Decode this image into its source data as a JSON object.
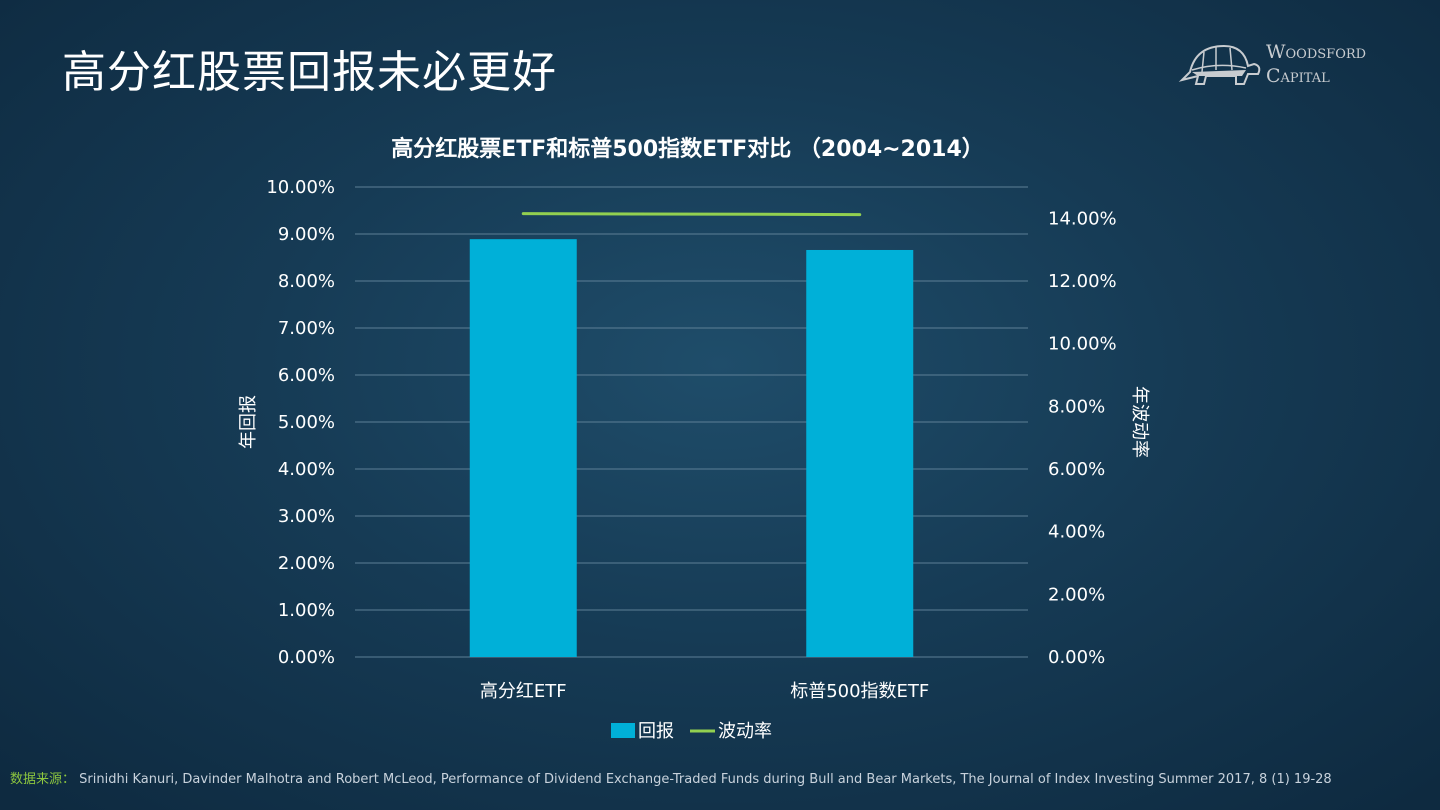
{
  "slide_title": "高分红股票回报未必更好",
  "logo": {
    "line1": "Woodsford",
    "line2": "Capital"
  },
  "chart_data": {
    "type": "bar+line",
    "title": "高分红股票ETF和标普500指数ETF对比 （2004~2014）",
    "categories": [
      "高分红ETF",
      "标普500指数ETF"
    ],
    "series": [
      {
        "name": "回报",
        "type": "bar",
        "axis": "left",
        "values": [
          0.0889,
          0.0866
        ],
        "color": "#00b0d8"
      },
      {
        "name": "波动率",
        "type": "line",
        "axis": "right",
        "values": [
          0.1415,
          0.1412
        ],
        "color": "#92d050"
      }
    ],
    "ylabel": "年回报",
    "y2label": "年波动率",
    "ylim": [
      0,
      0.1
    ],
    "y2lim": [
      0,
      0.15
    ],
    "yticks": [
      "0.00%",
      "1.00%",
      "2.00%",
      "3.00%",
      "4.00%",
      "5.00%",
      "6.00%",
      "7.00%",
      "8.00%",
      "9.00%",
      "10.00%"
    ],
    "y2ticks": [
      "0.00%",
      "2.00%",
      "4.00%",
      "6.00%",
      "8.00%",
      "10.00%",
      "12.00%",
      "14.00%"
    ],
    "grid": true,
    "legend": "bottom"
  },
  "footer": {
    "label": "数据来源：",
    "text": "Srinidhi Kanuri, Davinder Malhotra and Robert McLeod, Performance of Dividend Exchange-Traded Funds during Bull and Bear Markets, The Journal of Index Investing Summer 2017, 8 (1) 19-28"
  }
}
